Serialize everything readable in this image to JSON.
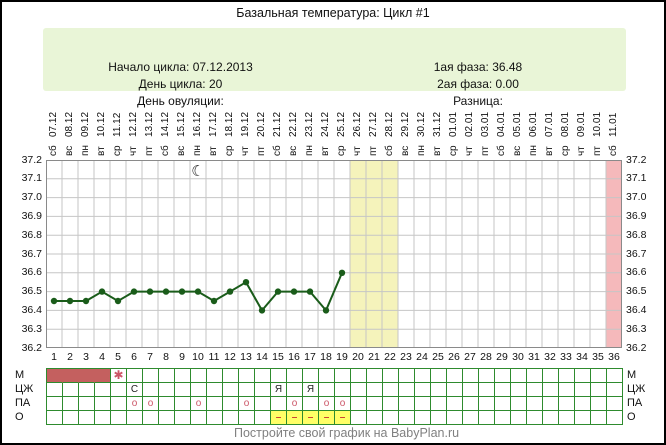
{
  "title": "Базальная температура: Цикл #1",
  "info": {
    "left": [
      {
        "label": "Начало цикла:",
        "value": "07.12.2013"
      },
      {
        "label": "День цикла:",
        "value": "20"
      },
      {
        "label": "День овуляции:",
        "value": ""
      }
    ],
    "right": [
      {
        "label": "1ая фаза:",
        "value": "36.48"
      },
      {
        "label": "2ая фаза:",
        "value": "0.00"
      },
      {
        "label": "Разница:",
        "value": ""
      }
    ]
  },
  "chart_data": {
    "type": "line",
    "title": "Базальная температура: Цикл #1",
    "ylim": [
      36.2,
      37.2
    ],
    "yticks": [
      "37.2",
      "37.1",
      "37.0",
      "36.9",
      "36.8",
      "36.7",
      "36.6",
      "36.5",
      "36.4",
      "36.3",
      "36.2"
    ],
    "x_ticks": [
      1,
      2,
      3,
      4,
      5,
      6,
      7,
      8,
      9,
      10,
      11,
      12,
      13,
      14,
      15,
      16,
      17,
      18,
      19,
      20,
      21,
      22,
      23,
      24,
      25,
      26,
      27,
      28,
      29,
      30,
      31,
      32,
      33,
      34,
      35,
      36
    ],
    "dates": [
      "07.12",
      "08.12",
      "09.12",
      "10.12",
      "11.12",
      "12.12",
      "13.12",
      "14.12",
      "15.12",
      "16.12",
      "17.12",
      "18.12",
      "19.12",
      "20.12",
      "21.12",
      "22.12",
      "23.12",
      "24.12",
      "25.12",
      "26.12",
      "27.12",
      "28.12",
      "29.12",
      "30.12",
      "31.12",
      "01.01",
      "02.01",
      "03.01",
      "04.01",
      "05.01",
      "06.01",
      "07.01",
      "08.01",
      "09.01",
      "10.01",
      "11.01"
    ],
    "weekdays": [
      "сб",
      "вс",
      "пн",
      "вт",
      "ср",
      "чт",
      "пт",
      "сб",
      "вс",
      "пн",
      "вт",
      "ср",
      "чт",
      "пт",
      "сб",
      "вс",
      "пн",
      "вт",
      "ср",
      "чт",
      "пт",
      "сб",
      "вс",
      "пн",
      "вт",
      "ср",
      "чт",
      "пт",
      "сб",
      "вс",
      "пн",
      "вт",
      "ср",
      "чт",
      "пт",
      "сб"
    ],
    "series": [
      {
        "name": "Базальная температура",
        "days": [
          1,
          2,
          3,
          4,
          5,
          6,
          7,
          8,
          9,
          10,
          11,
          12,
          13,
          14,
          15,
          16,
          17,
          18,
          19
        ],
        "values": [
          36.45,
          36.45,
          36.45,
          36.5,
          36.45,
          36.5,
          36.5,
          36.5,
          36.5,
          36.5,
          36.45,
          36.5,
          36.55,
          36.4,
          36.5,
          36.5,
          36.5,
          36.4,
          36.6
        ]
      }
    ],
    "highlight_bands": [
      {
        "from_day": 20,
        "to_day": 22,
        "color": "#f5f3bb",
        "meaning": "predicted-fertile-window"
      },
      {
        "from_day": 36,
        "to_day": 36,
        "color": "#f5b9bb",
        "meaning": "predicted-cycle-end"
      }
    ],
    "moon_marker": {
      "day": 10,
      "symbol": "☾"
    },
    "grid": true,
    "legend": "none"
  },
  "table": {
    "row_labels": [
      "М",
      "ЦЖ",
      "ПА",
      "О"
    ],
    "rows": [
      {
        "label": "М",
        "fill_from": 1,
        "fill_to": 4,
        "marks": [
          {
            "day": 5,
            "text": "✱",
            "style": "star"
          }
        ]
      },
      {
        "label": "ЦЖ",
        "marks": [
          {
            "day": 6,
            "text": "С",
            "style": "cm"
          },
          {
            "day": 15,
            "text": "Я",
            "style": "cm"
          },
          {
            "day": 17,
            "text": "Я",
            "style": "cm"
          }
        ]
      },
      {
        "label": "ПА",
        "marks": [
          {
            "day": 6,
            "text": "о",
            "style": "pa"
          },
          {
            "day": 7,
            "text": "о",
            "style": "pa"
          },
          {
            "day": 10,
            "text": "о",
            "style": "pa"
          },
          {
            "day": 13,
            "text": "о",
            "style": "pa"
          },
          {
            "day": 16,
            "text": "о",
            "style": "pa"
          },
          {
            "day": 18,
            "text": "о",
            "style": "pa"
          },
          {
            "day": 19,
            "text": "о",
            "style": "pa"
          }
        ]
      },
      {
        "label": "О",
        "yellow_from": 15,
        "yellow_to": 19,
        "marks": [
          {
            "day": 15,
            "text": "–",
            "style": "dash"
          },
          {
            "day": 16,
            "text": "–",
            "style": "dash"
          },
          {
            "day": 17,
            "text": "–",
            "style": "dash"
          },
          {
            "day": 18,
            "text": "–",
            "style": "dash"
          },
          {
            "day": 19,
            "text": "–",
            "style": "dash"
          }
        ]
      }
    ]
  },
  "footer": {
    "link_text": "Постройте свой график на BabyPlan.ru"
  },
  "colors": {
    "line": "#1a5c1a",
    "grid": "#c6c6c6",
    "plot_border": "#8a8a8a",
    "band_yellow": "#f5f3bb",
    "band_pink": "#f5b9bb",
    "menses_fill": "#c4605f",
    "mark_red": "#cc5566",
    "dash_red": "#cc4433",
    "cell_yellow": "#ffff66",
    "info_bg": "#e9f5d7",
    "footer_gray": "#808080"
  }
}
